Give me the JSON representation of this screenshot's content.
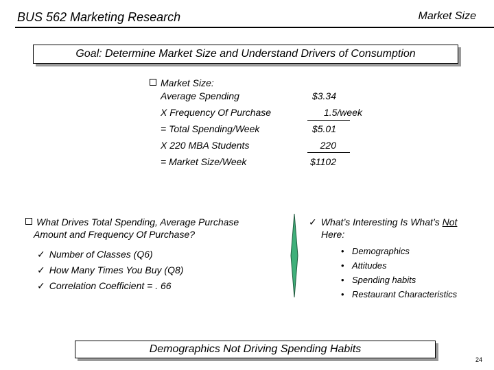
{
  "header": {
    "course_title": "BUS 562 Marketing Research",
    "section_title": "Market Size"
  },
  "goal": {
    "text": "Goal: Determine Market Size and Understand Drivers of Consumption"
  },
  "market_size": {
    "heading": "Market Size:",
    "rows": [
      {
        "label": "Average Spending",
        "value": "$3.34"
      },
      {
        "label": "X Frequency Of Purchase",
        "value": "1.5/week"
      },
      {
        "label": "= Total Spending/Week",
        "value": "$5.01"
      },
      {
        "label": "X 220 MBA Students",
        "value": "220"
      },
      {
        "label": "= Market Size/Week",
        "value": "$1102"
      }
    ]
  },
  "drivers": {
    "heading_line1": "What Drives Total Spending, Average Purchase",
    "heading_line2": "Amount and Frequency Of Purchase?",
    "items": [
      "Number of Classes  (Q6)",
      "How Many Times You Buy (Q8)",
      "Correlation Coefficient = . 66"
    ]
  },
  "interesting": {
    "heading_line1_pre": "What’s Interesting Is What’s",
    "heading_line1_not": "Not",
    "heading_line2": "Here:",
    "items": [
      "Demographics",
      "Attitudes",
      "Spending habits",
      "Restaurant Characteristics"
    ]
  },
  "conclusion": {
    "text": "Demographics Not Driving Spending Habits"
  },
  "page_number": "24",
  "colors": {
    "divider_fill": "#3fb07a",
    "shadow": "#9a9a9a"
  }
}
